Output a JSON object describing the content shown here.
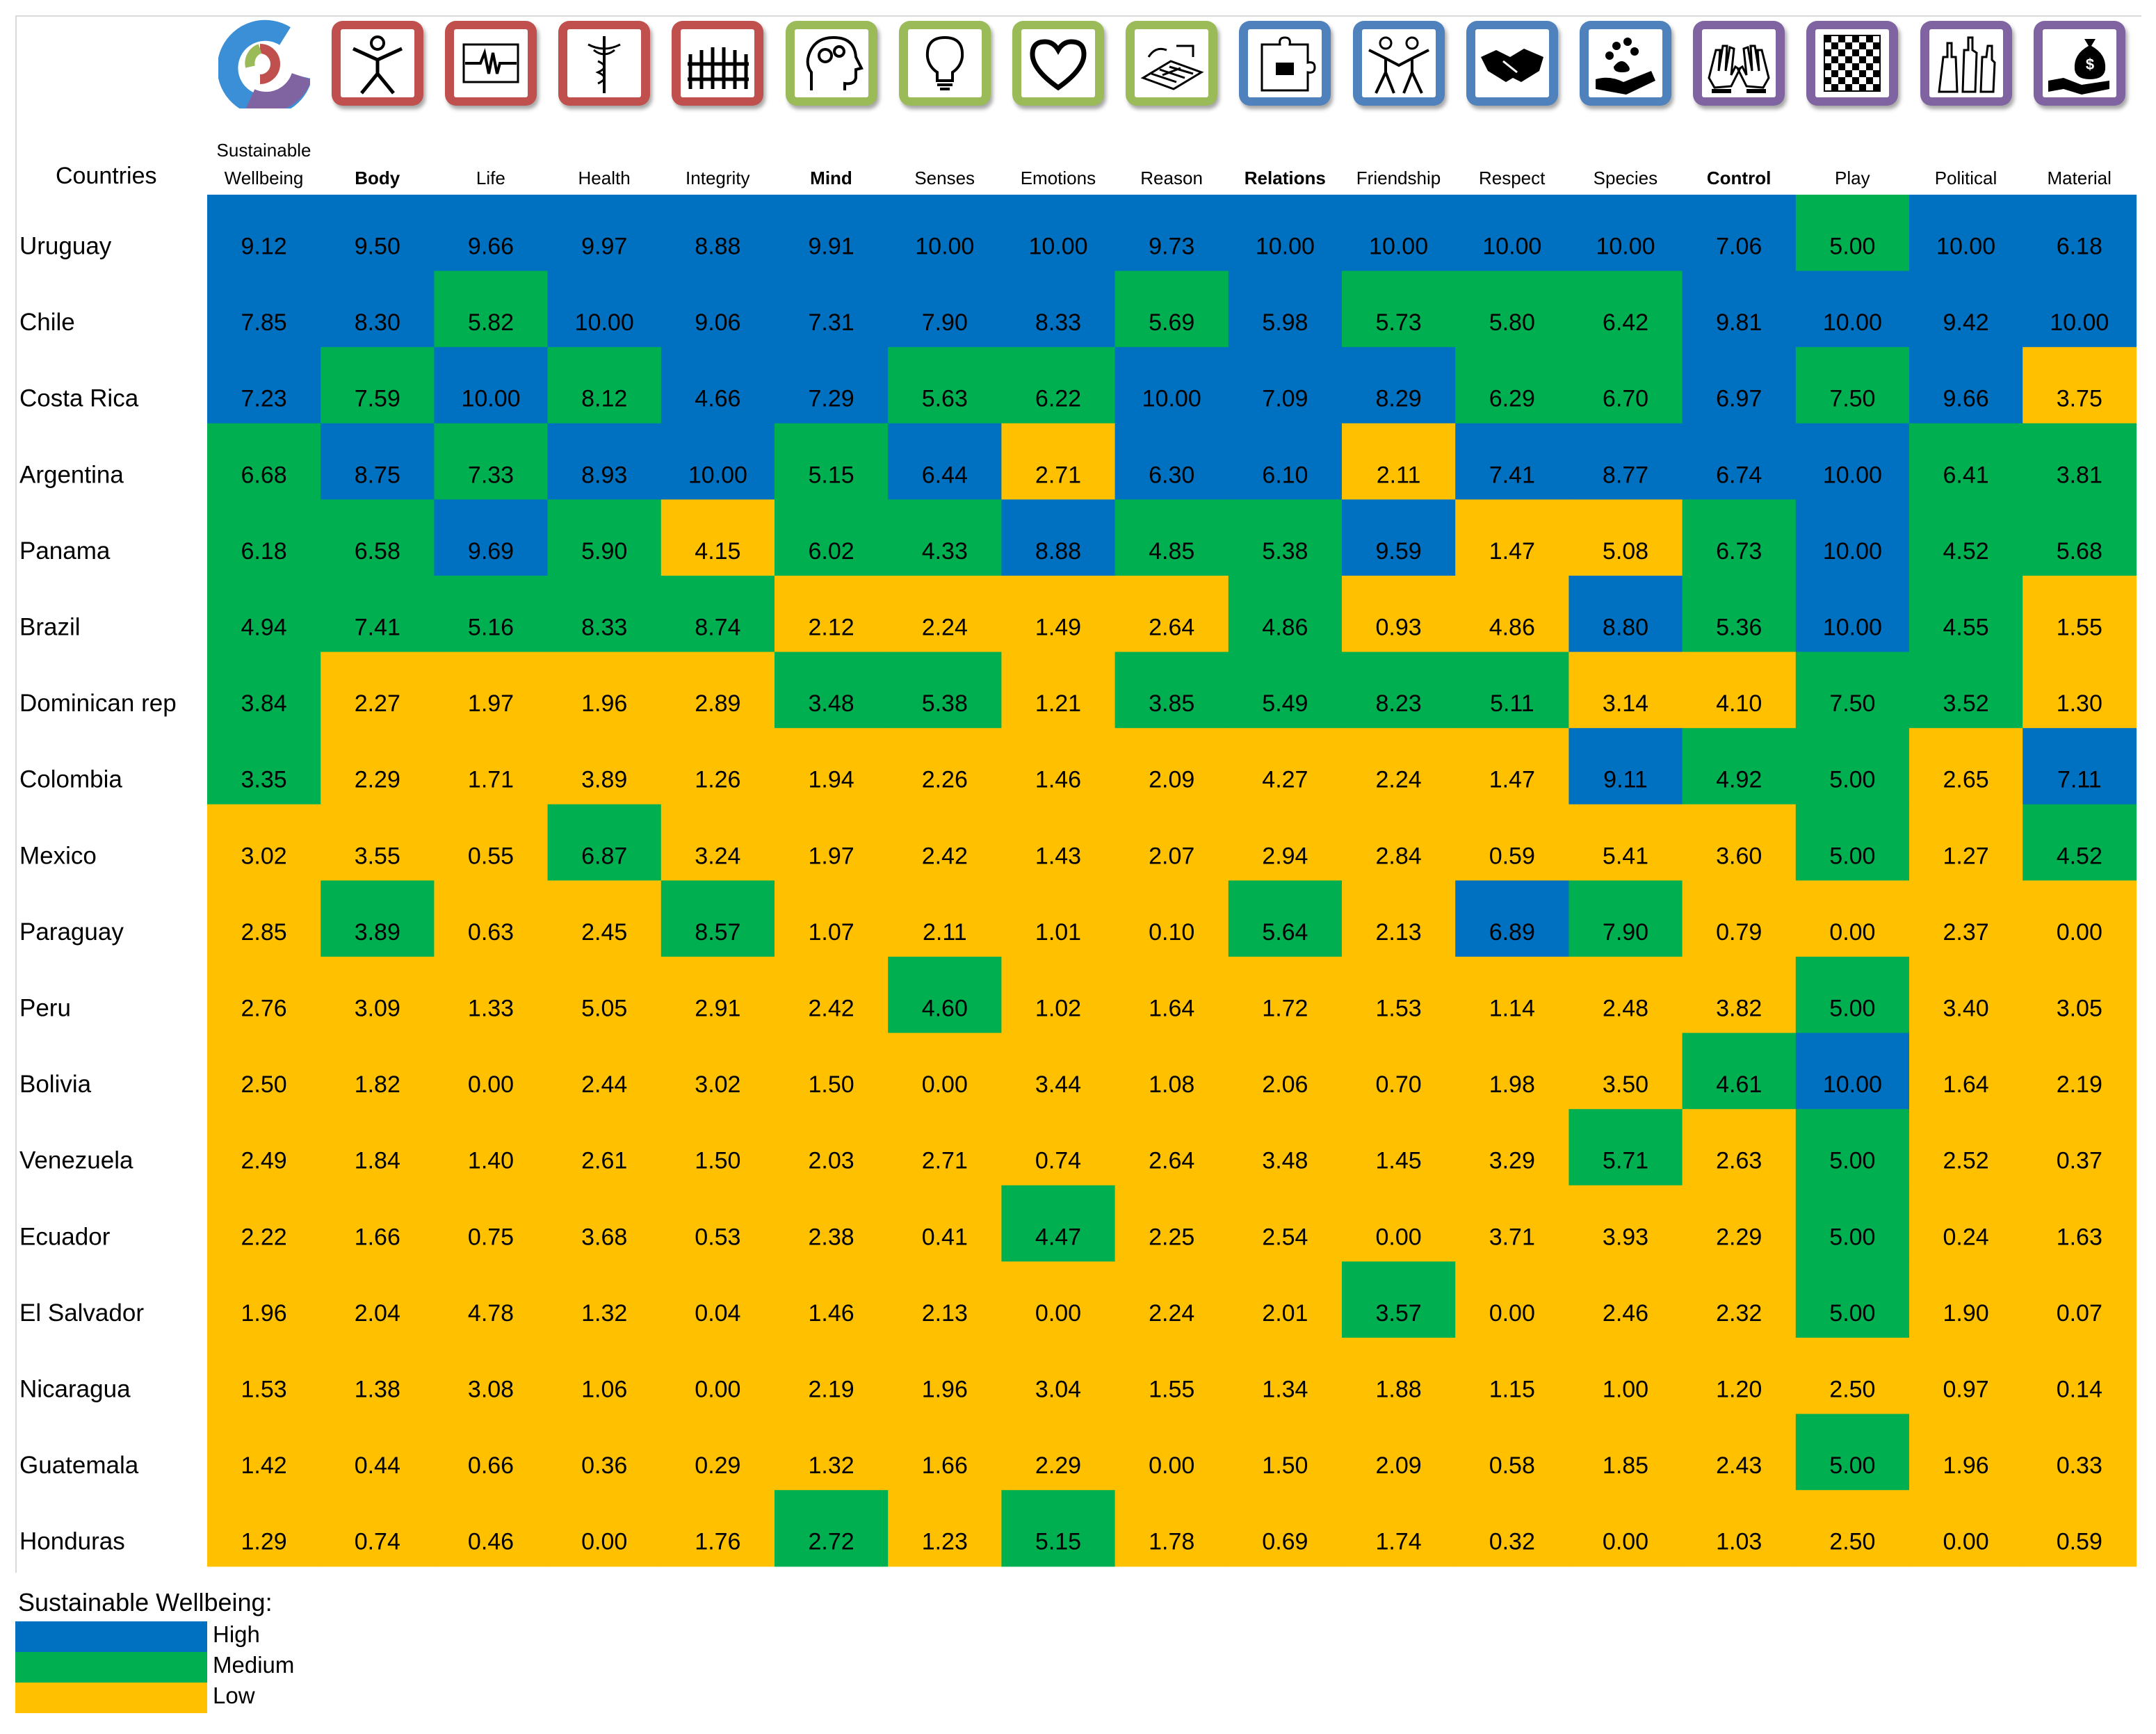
{
  "colors": {
    "high": "#0070C0",
    "medium": "#00B050",
    "low": "#FFC000"
  },
  "header_countries": "Countries",
  "columns": [
    {
      "label": "Sustainable Wellbeing",
      "lines": [
        "Sustainable",
        "Wellbeing"
      ],
      "bold": false,
      "icon": "sustainable-wellbeing-logo-icon",
      "group": "logo"
    },
    {
      "label": "Body",
      "bold": true,
      "icon": "body-figure-icon",
      "group": "red"
    },
    {
      "label": "Life",
      "bold": false,
      "icon": "heartbeat-line-icon",
      "group": "red"
    },
    {
      "label": "Health",
      "bold": false,
      "icon": "caduceus-icon",
      "group": "red"
    },
    {
      "label": "Integrity",
      "bold": false,
      "icon": "fence-icon",
      "group": "red"
    },
    {
      "label": "Mind",
      "bold": true,
      "icon": "head-gears-icon",
      "group": "green"
    },
    {
      "label": "Senses",
      "bold": false,
      "icon": "light-bulb-icon",
      "group": "green"
    },
    {
      "label": "Emotions",
      "bold": false,
      "icon": "heart-icon",
      "group": "green"
    },
    {
      "label": "Reason",
      "bold": false,
      "icon": "maze-icon",
      "group": "green"
    },
    {
      "label": "Relations",
      "bold": true,
      "icon": "puzzle-icon",
      "group": "blue"
    },
    {
      "label": "Friendship",
      "bold": false,
      "icon": "two-people-icon",
      "group": "blue"
    },
    {
      "label": "Respect",
      "bold": false,
      "icon": "handshake-icon",
      "group": "blue"
    },
    {
      "label": "Species",
      "bold": false,
      "icon": "paw-hand-icon",
      "group": "blue"
    },
    {
      "label": "Control",
      "bold": true,
      "icon": "hands-icon",
      "group": "purple"
    },
    {
      "label": "Play",
      "bold": false,
      "icon": "checkerboard-icon",
      "group": "purple"
    },
    {
      "label": "Political",
      "bold": false,
      "icon": "raised-hands-icon",
      "group": "purple"
    },
    {
      "label": "Material",
      "bold": false,
      "icon": "money-bag-hand-icon",
      "group": "purple"
    }
  ],
  "group_colors": {
    "red": "#C0504D",
    "green": "#9BBB59",
    "blue": "#4F81BD",
    "purple": "#8064A2"
  },
  "chart_data": {
    "type": "heatmap",
    "x": [
      "Sustainable Wellbeing",
      "Body",
      "Life",
      "Health",
      "Integrity",
      "Mind",
      "Senses",
      "Emotions",
      "Reason",
      "Relations",
      "Friendship",
      "Respect",
      "Species",
      "Control",
      "Play",
      "Political",
      "Material"
    ],
    "y": [
      "Uruguay",
      "Chile",
      "Costa Rica",
      "Argentina",
      "Panama",
      "Brazil",
      "Dominican rep",
      "Colombia",
      "Mexico",
      "Paraguay",
      "Peru",
      "Bolivia",
      "Venezuela",
      "Ecuador",
      "El Salvador",
      "Nicaragua",
      "Guatemala",
      "Honduras"
    ],
    "values": [
      [
        "9.12",
        "9.50",
        "9.66",
        "9.97",
        "8.88",
        "9.91",
        "10.00",
        "10.00",
        "9.73",
        "10.00",
        "10.00",
        "10.00",
        "10.00",
        "7.06",
        "5.00",
        "10.00",
        "6.18"
      ],
      [
        "7.85",
        "8.30",
        "5.82",
        "10.00",
        "9.06",
        "7.31",
        "7.90",
        "8.33",
        "5.69",
        "5.98",
        "5.73",
        "5.80",
        "6.42",
        "9.81",
        "10.00",
        "9.42",
        "10.00"
      ],
      [
        "7.23",
        "7.59",
        "10.00",
        "8.12",
        "4.66",
        "7.29",
        "5.63",
        "6.22",
        "10.00",
        "7.09",
        "8.29",
        "6.29",
        "6.70",
        "6.97",
        "7.50",
        "9.66",
        "3.75"
      ],
      [
        "6.68",
        "8.75",
        "7.33",
        "8.93",
        "10.00",
        "5.15",
        "6.44",
        "2.71",
        "6.30",
        "6.10",
        "2.11",
        "7.41",
        "8.77",
        "6.74",
        "10.00",
        "6.41",
        "3.81"
      ],
      [
        "6.18",
        "6.58",
        "9.69",
        "5.90",
        "4.15",
        "6.02",
        "4.33",
        "8.88",
        "4.85",
        "5.38",
        "9.59",
        "1.47",
        "5.08",
        "6.73",
        "10.00",
        "4.52",
        "5.68"
      ],
      [
        "4.94",
        "7.41",
        "5.16",
        "8.33",
        "8.74",
        "2.12",
        "2.24",
        "1.49",
        "2.64",
        "4.86",
        "0.93",
        "4.86",
        "8.80",
        "5.36",
        "10.00",
        "4.55",
        "1.55"
      ],
      [
        "3.84",
        "2.27",
        "1.97",
        "1.96",
        "2.89",
        "3.48",
        "5.38",
        "1.21",
        "3.85",
        "5.49",
        "8.23",
        "5.11",
        "3.14",
        "4.10",
        "7.50",
        "3.52",
        "1.30"
      ],
      [
        "3.35",
        "2.29",
        "1.71",
        "3.89",
        "1.26",
        "1.94",
        "2.26",
        "1.46",
        "2.09",
        "4.27",
        "2.24",
        "1.47",
        "9.11",
        "4.92",
        "5.00",
        "2.65",
        "7.11"
      ],
      [
        "3.02",
        "3.55",
        "0.55",
        "6.87",
        "3.24",
        "1.97",
        "2.42",
        "1.43",
        "2.07",
        "2.94",
        "2.84",
        "0.59",
        "5.41",
        "3.60",
        "5.00",
        "1.27",
        "4.52"
      ],
      [
        "2.85",
        "3.89",
        "0.63",
        "2.45",
        "8.57",
        "1.07",
        "2.11",
        "1.01",
        "0.10",
        "5.64",
        "2.13",
        "6.89",
        "7.90",
        "0.79",
        "0.00",
        "2.37",
        "0.00"
      ],
      [
        "2.76",
        "3.09",
        "1.33",
        "5.05",
        "2.91",
        "2.42",
        "4.60",
        "1.02",
        "1.64",
        "1.72",
        "1.53",
        "1.14",
        "2.48",
        "3.82",
        "5.00",
        "3.40",
        "3.05"
      ],
      [
        "2.50",
        "1.82",
        "0.00",
        "2.44",
        "3.02",
        "1.50",
        "0.00",
        "3.44",
        "1.08",
        "2.06",
        "0.70",
        "1.98",
        "3.50",
        "4.61",
        "10.00",
        "1.64",
        "2.19"
      ],
      [
        "2.49",
        "1.84",
        "1.40",
        "2.61",
        "1.50",
        "2.03",
        "2.71",
        "0.74",
        "2.64",
        "3.48",
        "1.45",
        "3.29",
        "5.71",
        "2.63",
        "5.00",
        "2.52",
        "0.37"
      ],
      [
        "2.22",
        "1.66",
        "0.75",
        "3.68",
        "0.53",
        "2.38",
        "0.41",
        "4.47",
        "2.25",
        "2.54",
        "0.00",
        "3.71",
        "3.93",
        "2.29",
        "5.00",
        "0.24",
        "1.63"
      ],
      [
        "1.96",
        "2.04",
        "4.78",
        "1.32",
        "0.04",
        "1.46",
        "2.13",
        "0.00",
        "2.24",
        "2.01",
        "3.57",
        "0.00",
        "2.46",
        "2.32",
        "5.00",
        "1.90",
        "0.07"
      ],
      [
        "1.53",
        "1.38",
        "3.08",
        "1.06",
        "0.00",
        "2.19",
        "1.96",
        "3.04",
        "1.55",
        "1.34",
        "1.88",
        "1.15",
        "1.00",
        "1.20",
        "2.50",
        "0.97",
        "0.14"
      ],
      [
        "1.42",
        "0.44",
        "0.66",
        "0.36",
        "0.29",
        "1.32",
        "1.66",
        "2.29",
        "0.00",
        "1.50",
        "2.09",
        "0.58",
        "1.85",
        "2.43",
        "5.00",
        "1.96",
        "0.33"
      ],
      [
        "1.29",
        "0.74",
        "0.46",
        "0.00",
        "1.76",
        "2.72",
        "1.23",
        "5.15",
        "1.78",
        "0.69",
        "1.74",
        "0.32",
        "0.00",
        "1.03",
        "2.50",
        "0.00",
        "0.59"
      ]
    ],
    "levels": [
      [
        "H",
        "H",
        "H",
        "H",
        "H",
        "H",
        "H",
        "H",
        "H",
        "H",
        "H",
        "H",
        "H",
        "H",
        "M",
        "H",
        "H"
      ],
      [
        "H",
        "H",
        "M",
        "H",
        "H",
        "H",
        "H",
        "H",
        "M",
        "H",
        "M",
        "M",
        "M",
        "H",
        "H",
        "H",
        "H"
      ],
      [
        "H",
        "M",
        "H",
        "M",
        "H",
        "H",
        "M",
        "M",
        "H",
        "H",
        "H",
        "M",
        "M",
        "H",
        "M",
        "H",
        "L"
      ],
      [
        "M",
        "H",
        "M",
        "H",
        "H",
        "M",
        "H",
        "L",
        "H",
        "H",
        "L",
        "H",
        "H",
        "H",
        "H",
        "M",
        "M"
      ],
      [
        "M",
        "M",
        "H",
        "M",
        "L",
        "M",
        "M",
        "H",
        "M",
        "M",
        "H",
        "L",
        "L",
        "M",
        "H",
        "M",
        "M"
      ],
      [
        "M",
        "M",
        "M",
        "M",
        "M",
        "L",
        "L",
        "L",
        "L",
        "M",
        "L",
        "L",
        "H",
        "M",
        "H",
        "M",
        "L"
      ],
      [
        "M",
        "L",
        "L",
        "L",
        "L",
        "M",
        "M",
        "L",
        "M",
        "M",
        "M",
        "M",
        "L",
        "L",
        "M",
        "M",
        "L"
      ],
      [
        "M",
        "L",
        "L",
        "L",
        "L",
        "L",
        "L",
        "L",
        "L",
        "L",
        "L",
        "L",
        "H",
        "M",
        "M",
        "L",
        "H"
      ],
      [
        "L",
        "L",
        "L",
        "M",
        "L",
        "L",
        "L",
        "L",
        "L",
        "L",
        "L",
        "L",
        "L",
        "L",
        "M",
        "L",
        "M"
      ],
      [
        "L",
        "M",
        "L",
        "L",
        "M",
        "L",
        "L",
        "L",
        "L",
        "M",
        "L",
        "H",
        "M",
        "L",
        "L",
        "L",
        "L"
      ],
      [
        "L",
        "L",
        "L",
        "L",
        "L",
        "L",
        "M",
        "L",
        "L",
        "L",
        "L",
        "L",
        "L",
        "L",
        "M",
        "L",
        "L"
      ],
      [
        "L",
        "L",
        "L",
        "L",
        "L",
        "L",
        "L",
        "L",
        "L",
        "L",
        "L",
        "L",
        "L",
        "M",
        "H",
        "L",
        "L"
      ],
      [
        "L",
        "L",
        "L",
        "L",
        "L",
        "L",
        "L",
        "L",
        "L",
        "L",
        "L",
        "L",
        "M",
        "L",
        "M",
        "L",
        "L"
      ],
      [
        "L",
        "L",
        "L",
        "L",
        "L",
        "L",
        "L",
        "M",
        "L",
        "L",
        "L",
        "L",
        "L",
        "L",
        "M",
        "L",
        "L"
      ],
      [
        "L",
        "L",
        "L",
        "L",
        "L",
        "L",
        "L",
        "L",
        "L",
        "L",
        "M",
        "L",
        "L",
        "L",
        "M",
        "L",
        "L"
      ],
      [
        "L",
        "L",
        "L",
        "L",
        "L",
        "L",
        "L",
        "L",
        "L",
        "L",
        "L",
        "L",
        "L",
        "L",
        "L",
        "L",
        "L"
      ],
      [
        "L",
        "L",
        "L",
        "L",
        "L",
        "L",
        "L",
        "L",
        "L",
        "L",
        "L",
        "L",
        "L",
        "L",
        "M",
        "L",
        "L"
      ],
      [
        "L",
        "L",
        "L",
        "L",
        "L",
        "M",
        "L",
        "M",
        "L",
        "L",
        "L",
        "L",
        "L",
        "L",
        "L",
        "L",
        "L"
      ]
    ],
    "legend": {
      "title": "Sustainable Wellbeing:",
      "items": [
        {
          "key": "H",
          "label": "High"
        },
        {
          "key": "M",
          "label": "Medium"
        },
        {
          "key": "L",
          "label": "Low"
        }
      ]
    }
  }
}
